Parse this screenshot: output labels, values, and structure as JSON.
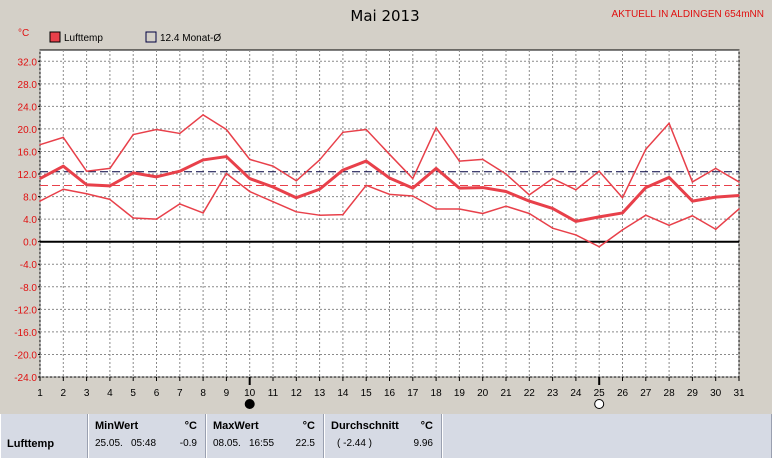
{
  "title": "Mai 2013",
  "station": "AKTUELL IN ALDINGEN 654mNN",
  "unit_label": "°C",
  "legend": [
    {
      "label": "Lufttemp",
      "color": "#e8404a",
      "filled": true
    },
    {
      "label": "12.4 Monat-Ø",
      "color": "#000040",
      "filled": false
    }
  ],
  "chart_data": {
    "type": "line",
    "x": [
      1,
      2,
      3,
      4,
      5,
      6,
      7,
      8,
      9,
      10,
      11,
      12,
      13,
      14,
      15,
      16,
      17,
      18,
      19,
      20,
      21,
      22,
      23,
      24,
      25,
      26,
      27,
      28,
      29,
      30,
      31
    ],
    "x_tick_labels": [
      "1",
      "2",
      "3",
      "4",
      "5",
      "6",
      "7",
      "8",
      "9",
      "10",
      "11",
      "12",
      "13",
      "14",
      "15",
      "16",
      "17",
      "18",
      "19",
      "20",
      "21",
      "22",
      "23",
      "24",
      "25",
      "26",
      "27",
      "28",
      "29",
      "30",
      "31"
    ],
    "ylim": [
      -24,
      34
    ],
    "y_ticks": [
      32,
      28,
      24,
      20,
      16,
      12,
      8,
      4,
      0,
      -4,
      -8,
      -12,
      -16,
      -20,
      -24
    ],
    "y_tick_labels": [
      "32.0",
      "28.0",
      "24.0",
      "20.0",
      "16.0",
      "12.0",
      "8.0",
      "4.0",
      "0.0",
      "-4.0",
      "-8.0",
      "-12.0",
      "-16.0",
      "-20.0",
      "-24.0"
    ],
    "grid": true,
    "reference_lines": [
      {
        "value": 12.4,
        "color": "#000040",
        "style": "dashed"
      },
      {
        "value": 9.96,
        "color": "#e8404a",
        "style": "dashed"
      }
    ],
    "series": [
      {
        "role": "max",
        "color": "#e8404a",
        "width": 1.5,
        "values": [
          17.2,
          18.5,
          12.5,
          13.0,
          19.0,
          19.9,
          19.2,
          22.5,
          19.9,
          14.6,
          13.4,
          10.8,
          14.5,
          19.4,
          19.9,
          15.5,
          11.2,
          20.2,
          14.3,
          14.6,
          12.0,
          8.3,
          11.2,
          9.2,
          12.5,
          7.8,
          16.4,
          21.0,
          10.6,
          13.0,
          10.6
        ]
      },
      {
        "role": "avg",
        "color": "#e8404a",
        "width": 3,
        "values": [
          11.2,
          13.4,
          10.1,
          9.9,
          12.2,
          11.5,
          12.5,
          14.5,
          15.1,
          11.2,
          9.7,
          7.8,
          9.3,
          12.7,
          14.3,
          11.3,
          9.5,
          13.0,
          9.5,
          9.6,
          8.9,
          7.2,
          5.9,
          3.6,
          4.4,
          5.1,
          9.6,
          11.4,
          7.2,
          7.9,
          8.2
        ]
      },
      {
        "role": "min",
        "color": "#e8404a",
        "width": 1.5,
        "values": [
          7.2,
          9.3,
          8.5,
          7.5,
          4.2,
          4.0,
          6.7,
          5.1,
          12.1,
          8.9,
          7.1,
          5.3,
          4.7,
          4.8,
          10.0,
          8.4,
          8.1,
          5.8,
          5.8,
          5.0,
          6.3,
          5.0,
          2.4,
          1.2,
          -0.9,
          2.1,
          4.7,
          2.9,
          4.6,
          2.2,
          5.8
        ]
      }
    ],
    "markers": [
      {
        "day": 10,
        "phase": "new-moon"
      },
      {
        "day": 25,
        "phase": "full-moon"
      }
    ]
  },
  "stats": {
    "row_label": "Lufttemp",
    "min": {
      "header": "MinWert",
      "unit": "°C",
      "date": "25.05.",
      "time": "05:48",
      "value": "-0.9"
    },
    "max": {
      "header": "MaxWert",
      "unit": "°C",
      "date": "08.05.",
      "time": "16:55",
      "value": "22.5"
    },
    "avg": {
      "header": "Durchschnitt",
      "unit": "°C",
      "note": "( -2.44 )",
      "value": "9.96"
    }
  }
}
